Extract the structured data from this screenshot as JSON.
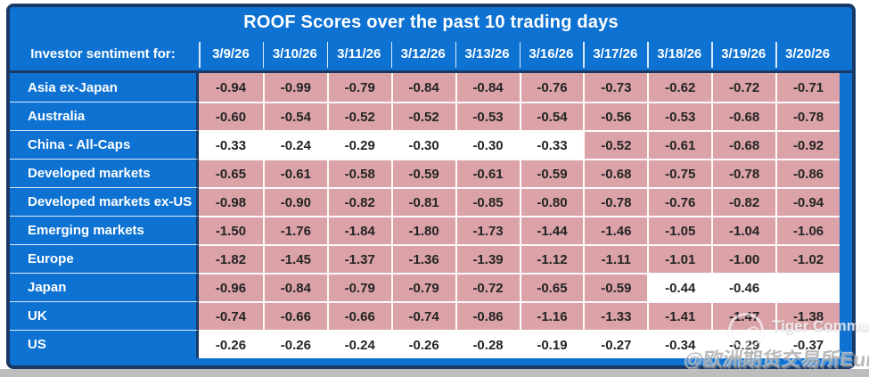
{
  "title": "ROOF Scores over the past 10 trading days",
  "table": {
    "corner_label": "Investor sentiment for:",
    "dates": [
      "3/9/26",
      "3/10/26",
      "3/11/26",
      "3/12/26",
      "3/13/26",
      "3/16/26",
      "3/17/26",
      "3/18/26",
      "3/19/26",
      "3/20/26"
    ],
    "rows": [
      {
        "label": "Asia ex-Japan",
        "values": [
          "-0.94",
          "-0.99",
          "-0.79",
          "-0.84",
          "-0.84",
          "-0.76",
          "-0.73",
          "-0.62",
          "-0.72",
          "-0.71"
        ],
        "white_cols": []
      },
      {
        "label": "Australia",
        "values": [
          "-0.60",
          "-0.54",
          "-0.52",
          "-0.52",
          "-0.53",
          "-0.54",
          "-0.56",
          "-0.53",
          "-0.68",
          "-0.78"
        ],
        "white_cols": []
      },
      {
        "label": "China - All-Caps",
        "values": [
          "-0.33",
          "-0.24",
          "-0.29",
          "-0.30",
          "-0.30",
          "-0.33",
          "-0.52",
          "-0.61",
          "-0.68",
          "-0.92"
        ],
        "white_cols": [
          0,
          1,
          2,
          3,
          4,
          5
        ]
      },
      {
        "label": "Developed markets",
        "values": [
          "-0.65",
          "-0.61",
          "-0.58",
          "-0.59",
          "-0.61",
          "-0.59",
          "-0.68",
          "-0.75",
          "-0.78",
          "-0.86"
        ],
        "white_cols": []
      },
      {
        "label": "Developed markets ex-US",
        "values": [
          "-0.98",
          "-0.90",
          "-0.82",
          "-0.81",
          "-0.85",
          "-0.80",
          "-0.78",
          "-0.76",
          "-0.82",
          "-0.94"
        ],
        "white_cols": []
      },
      {
        "label": "Emerging markets",
        "values": [
          "-1.50",
          "-1.76",
          "-1.84",
          "-1.80",
          "-1.73",
          "-1.44",
          "-1.46",
          "-1.05",
          "-1.04",
          "-1.06"
        ],
        "white_cols": []
      },
      {
        "label": "Europe",
        "values": [
          "-1.82",
          "-1.45",
          "-1.37",
          "-1.36",
          "-1.39",
          "-1.12",
          "-1.11",
          "-1.01",
          "-1.00",
          "-1.02"
        ],
        "white_cols": []
      },
      {
        "label": "Japan",
        "values": [
          "-0.96",
          "-0.84",
          "-0.79",
          "-0.79",
          "-0.72",
          "-0.65",
          "-0.59",
          "-0.44",
          "-0.46",
          ""
        ],
        "white_cols": [
          7,
          8,
          9
        ]
      },
      {
        "label": "UK",
        "values": [
          "-0.74",
          "-0.66",
          "-0.66",
          "-0.74",
          "-0.86",
          "-1.16",
          "-1.33",
          "-1.41",
          "-1.47",
          "-1.38"
        ],
        "white_cols": []
      },
      {
        "label": "US",
        "values": [
          "-0.26",
          "-0.26",
          "-0.24",
          "-0.26",
          "-0.28",
          "-0.19",
          "-0.27",
          "-0.34",
          "-0.29",
          "-0.37"
        ],
        "white_cols": [
          0,
          1,
          2,
          3,
          4,
          5,
          6,
          7,
          8,
          9
        ]
      }
    ]
  },
  "watermarks": {
    "community": "Tiger Community",
    "publisher": "@欧洲期货交易所Eurex"
  },
  "colors": {
    "header_blue": "#0e72d2",
    "border_navy": "#183965",
    "negative_pink": "#dba3a8",
    "cell_white": "#ffffff",
    "value_text": "#242424"
  }
}
